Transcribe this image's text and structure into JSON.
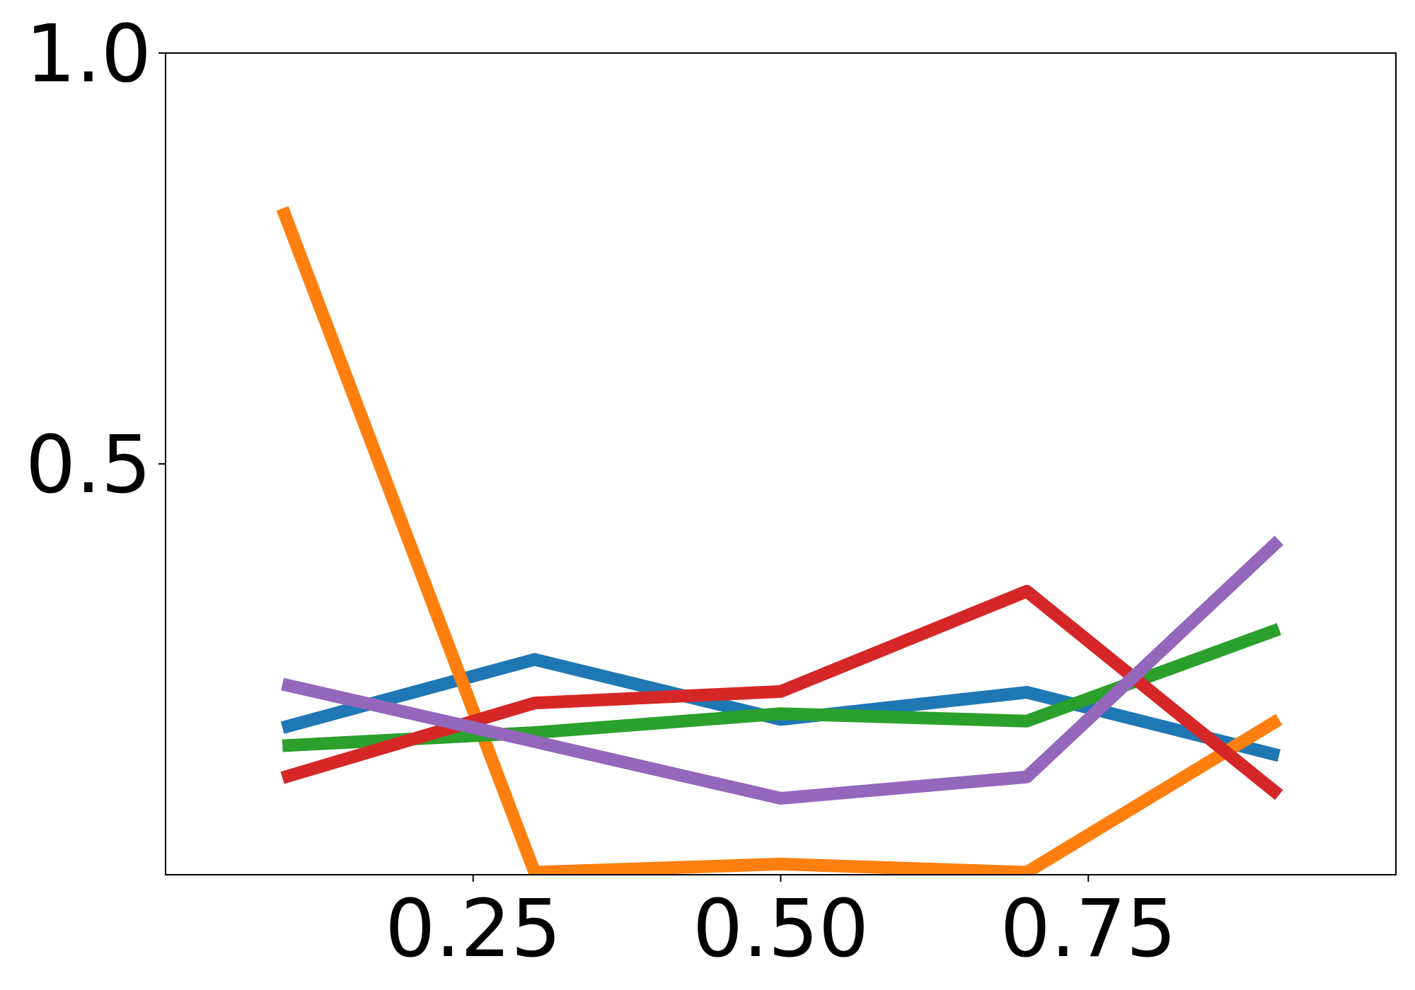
{
  "chart_data": {
    "type": "line",
    "x": [
      0.095,
      0.3,
      0.5,
      0.7,
      0.905
    ],
    "series": [
      {
        "color": "#1f77b4",
        "values": [
          0.179,
          0.262,
          0.189,
          0.222,
          0.145
        ]
      },
      {
        "color": "#ff7f0e",
        "values": [
          0.811,
          0.003,
          0.013,
          0.003,
          0.189
        ]
      },
      {
        "color": "#2ca02c",
        "values": [
          0.157,
          0.173,
          0.196,
          0.187,
          0.299
        ]
      },
      {
        "color": "#d62728",
        "values": [
          0.118,
          0.209,
          0.223,
          0.345,
          0.097
        ]
      },
      {
        "color": "#9467bd",
        "values": [
          0.232,
          0.162,
          0.093,
          0.119,
          0.407
        ]
      }
    ],
    "xlim": [
      0,
      1
    ],
    "ylim": [
      0,
      1
    ],
    "xticks": [
      0.25,
      {
        "value": 0.5,
        "label": "0.50"
      },
      0.75
    ],
    "yticks": [
      0.5,
      {
        "value": 1,
        "label": "1.0"
      }
    ]
  }
}
